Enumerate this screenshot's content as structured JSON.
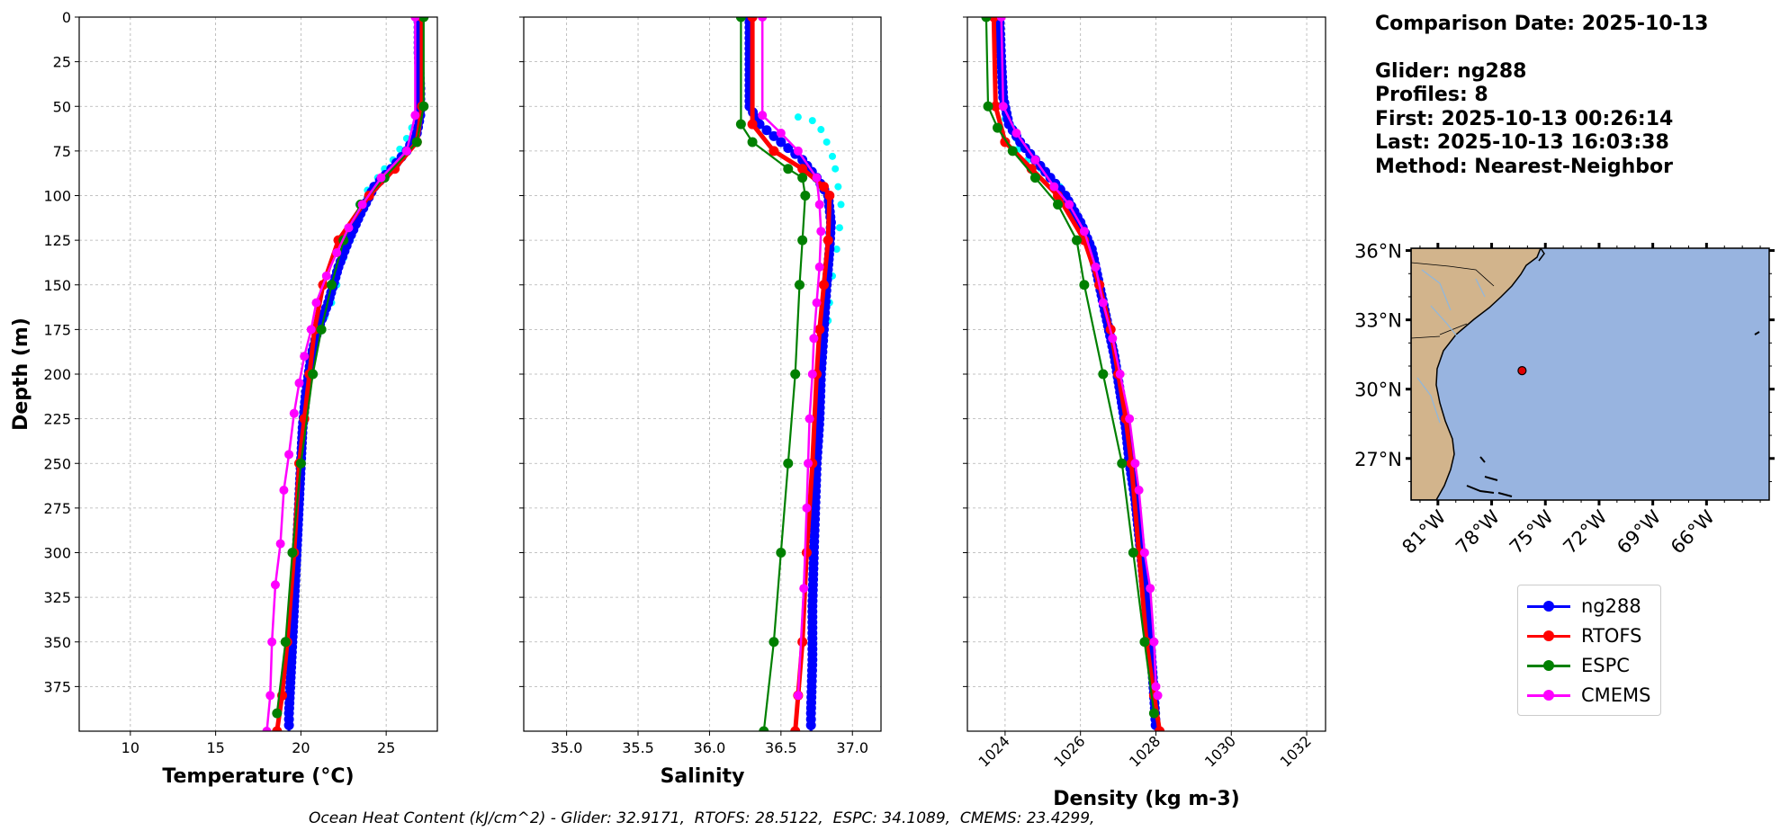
{
  "info": {
    "comparison_date": "Comparison Date: 2025-10-13",
    "glider": "Glider: ng288",
    "profiles": "Profiles: 8",
    "first": "First: 2025-10-13 00:26:14",
    "last": "Last: 2025-10-13 16:03:38",
    "method": "Method: Nearest-Neighbor"
  },
  "footer": "Ocean Heat Content (kJ/cm^2) - Glider: 32.9171,  RTOFS: 28.5122,  ESPC: 34.1089,  CMEMS: 23.4299,",
  "legend": [
    {
      "name": "ng288",
      "color": "#0000ff"
    },
    {
      "name": "RTOFS",
      "color": "#ff0000"
    },
    {
      "name": "ESPC",
      "color": "#008000"
    },
    {
      "name": "CMEMS",
      "color": "#ff00ff"
    }
  ],
  "colors": {
    "glider_scatter": "#00ffff",
    "land": "#d2b48c",
    "ocean": "#98b4e0"
  },
  "map": {
    "lat_ticks": [
      "36°N",
      "33°N",
      "30°N",
      "27°N"
    ],
    "lon_ticks": [
      "81°W",
      "78°W",
      "75°W",
      "72°W",
      "69°W",
      "66°W"
    ],
    "lat_values": [
      36,
      33,
      30,
      27
    ],
    "lon_values": [
      -81,
      -78,
      -75,
      -72,
      -69,
      -66
    ],
    "extent": {
      "lon": [
        -82.5,
        -62.5
      ],
      "lat": [
        25.2,
        36.1
      ]
    },
    "glider_position": {
      "lon": -76.3,
      "lat": 30.8
    }
  },
  "chart_data": [
    {
      "type": "line",
      "xlabel": "Temperature (°C)",
      "ylabel": "Depth (m)",
      "xlim": [
        7,
        28
      ],
      "ylim": [
        400,
        0
      ],
      "xticks": [
        10,
        15,
        20,
        25
      ],
      "yticks": [
        0,
        25,
        50,
        75,
        100,
        125,
        150,
        175,
        200,
        225,
        250,
        275,
        300,
        325,
        350,
        375
      ],
      "grid": true,
      "series": [
        {
          "name": "ng288",
          "points": [
            [
              26.9,
              0
            ],
            [
              26.9,
              20
            ],
            [
              27,
              40
            ],
            [
              27,
              55
            ],
            [
              26.8,
              65
            ],
            [
              26.2,
              75
            ],
            [
              25.3,
              85
            ],
            [
              24.3,
              95
            ],
            [
              23.5,
              110
            ],
            [
              22.8,
              125
            ],
            [
              22.2,
              140
            ],
            [
              21.6,
              160
            ],
            [
              21.0,
              175
            ],
            [
              20.6,
              190
            ],
            [
              20.3,
              210
            ],
            [
              20.1,
              230
            ],
            [
              20.0,
              250
            ],
            [
              19.9,
              270
            ],
            [
              19.8,
              290
            ],
            [
              19.7,
              310
            ],
            [
              19.6,
              330
            ],
            [
              19.5,
              350
            ],
            [
              19.4,
              370
            ],
            [
              19.3,
              390
            ],
            [
              19.3,
              400
            ]
          ]
        },
        {
          "name": "RTOFS",
          "points": [
            [
              27.1,
              0
            ],
            [
              27.1,
              50
            ],
            [
              26.8,
              70
            ],
            [
              25.5,
              85
            ],
            [
              24.0,
              100
            ],
            [
              22.2,
              125
            ],
            [
              21.3,
              150
            ],
            [
              20.8,
              175
            ],
            [
              20.5,
              200
            ],
            [
              20.2,
              225
            ],
            [
              19.9,
              250
            ],
            [
              19.6,
              300
            ],
            [
              19.2,
              350
            ],
            [
              18.9,
              380
            ],
            [
              18.6,
              400
            ]
          ]
        },
        {
          "name": "ESPC",
          "points": [
            [
              27.2,
              0
            ],
            [
              27.2,
              50
            ],
            [
              26.8,
              70
            ],
            [
              24.9,
              90
            ],
            [
              23.5,
              105
            ],
            [
              22.5,
              125
            ],
            [
              21.8,
              150
            ],
            [
              21.2,
              175
            ],
            [
              20.7,
              200
            ],
            [
              20.0,
              250
            ],
            [
              19.5,
              300
            ],
            [
              19.1,
              350
            ],
            [
              18.6,
              390
            ]
          ]
        },
        {
          "name": "CMEMS",
          "points": [
            [
              26.7,
              0
            ],
            [
              26.7,
              55
            ],
            [
              26.2,
              75
            ],
            [
              24.7,
              90
            ],
            [
              23.6,
              105
            ],
            [
              22.8,
              118
            ],
            [
              22.1,
              132
            ],
            [
              21.5,
              145
            ],
            [
              20.9,
              160
            ],
            [
              20.6,
              175
            ],
            [
              20.2,
              190
            ],
            [
              19.9,
              205
            ],
            [
              19.6,
              222
            ],
            [
              19.3,
              245
            ],
            [
              19.0,
              265
            ],
            [
              18.8,
              295
            ],
            [
              18.5,
              318
            ],
            [
              18.3,
              350
            ],
            [
              18.2,
              380
            ],
            [
              18.0,
              400
            ]
          ]
        }
      ],
      "scatter": {
        "name": "glider profiles",
        "points": [
          [
            27.0,
            55
          ],
          [
            26.5,
            62
          ],
          [
            26.2,
            68
          ],
          [
            25.8,
            74
          ],
          [
            25.4,
            80
          ],
          [
            24.9,
            85
          ],
          [
            24.5,
            90
          ],
          [
            23.9,
            97
          ],
          [
            23.4,
            105
          ],
          [
            23.2,
            115
          ],
          [
            22.9,
            125
          ],
          [
            22.5,
            135
          ],
          [
            22.1,
            150
          ],
          [
            21.8,
            160
          ],
          [
            21.4,
            168
          ]
        ]
      }
    },
    {
      "type": "line",
      "xlabel": "Salinity",
      "xlim": [
        34.7,
        37.2
      ],
      "ylim": [
        400,
        0
      ],
      "xticks": [
        35.0,
        35.5,
        36.0,
        36.5,
        37.0
      ],
      "grid": true,
      "series": [
        {
          "name": "ng288",
          "points": [
            [
              36.28,
              0
            ],
            [
              36.28,
              50
            ],
            [
              36.35,
              60
            ],
            [
              36.5,
              70
            ],
            [
              36.65,
              80
            ],
            [
              36.75,
              90
            ],
            [
              36.83,
              100
            ],
            [
              36.85,
              115
            ],
            [
              36.84,
              130
            ],
            [
              36.82,
              150
            ],
            [
              36.8,
              175
            ],
            [
              36.78,
              200
            ],
            [
              36.77,
              225
            ],
            [
              36.75,
              250
            ],
            [
              36.74,
              275
            ],
            [
              36.73,
              300
            ],
            [
              36.72,
              330
            ],
            [
              36.72,
              360
            ],
            [
              36.71,
              390
            ],
            [
              36.71,
              400
            ]
          ]
        },
        {
          "name": "RTOFS",
          "points": [
            [
              36.3,
              0
            ],
            [
              36.3,
              60
            ],
            [
              36.45,
              75
            ],
            [
              36.65,
              85
            ],
            [
              36.8,
              95
            ],
            [
              36.84,
              100
            ],
            [
              36.83,
              125
            ],
            [
              36.8,
              150
            ],
            [
              36.77,
              175
            ],
            [
              36.75,
              200
            ],
            [
              36.72,
              250
            ],
            [
              36.68,
              300
            ],
            [
              36.65,
              350
            ],
            [
              36.62,
              380
            ],
            [
              36.6,
              400
            ]
          ]
        },
        {
          "name": "ESPC",
          "points": [
            [
              36.22,
              0
            ],
            [
              36.22,
              60
            ],
            [
              36.3,
              70
            ],
            [
              36.55,
              85
            ],
            [
              36.65,
              90
            ],
            [
              36.67,
              100
            ],
            [
              36.65,
              125
            ],
            [
              36.63,
              150
            ],
            [
              36.6,
              200
            ],
            [
              36.55,
              250
            ],
            [
              36.5,
              300
            ],
            [
              36.45,
              350
            ],
            [
              36.38,
              400
            ]
          ]
        },
        {
          "name": "CMEMS",
          "points": [
            [
              36.37,
              0
            ],
            [
              36.37,
              55
            ],
            [
              36.5,
              65
            ],
            [
              36.62,
              75
            ],
            [
              36.75,
              90
            ],
            [
              36.77,
              105
            ],
            [
              36.78,
              120
            ],
            [
              36.77,
              140
            ],
            [
              36.75,
              160
            ],
            [
              36.73,
              180
            ],
            [
              36.72,
              200
            ],
            [
              36.7,
              225
            ],
            [
              36.69,
              250
            ],
            [
              36.68,
              275
            ],
            [
              36.66,
              320
            ],
            [
              36.62,
              380
            ]
          ]
        }
      ],
      "scatter": {
        "name": "glider profiles",
        "points": [
          [
            36.62,
            56
          ],
          [
            36.72,
            58
          ],
          [
            36.78,
            63
          ],
          [
            36.82,
            70
          ],
          [
            36.86,
            78
          ],
          [
            36.88,
            85
          ],
          [
            36.9,
            95
          ],
          [
            36.92,
            105
          ],
          [
            36.91,
            118
          ],
          [
            36.89,
            130
          ],
          [
            36.86,
            145
          ],
          [
            36.84,
            160
          ],
          [
            36.83,
            170
          ]
        ]
      }
    },
    {
      "type": "line",
      "xlabel": "Density (kg m-3)",
      "xlim": [
        1023,
        1032.5
      ],
      "ylim": [
        400,
        0
      ],
      "xticks": [
        1024,
        1026,
        1028,
        1030,
        1032
      ],
      "grid": true,
      "series": [
        {
          "name": "ng288",
          "points": [
            [
              1023.85,
              0
            ],
            [
              1023.9,
              25
            ],
            [
              1023.95,
              45
            ],
            [
              1024.1,
              60
            ],
            [
              1024.4,
              70
            ],
            [
              1024.8,
              80
            ],
            [
              1025.2,
              90
            ],
            [
              1025.6,
              100
            ],
            [
              1026.0,
              115
            ],
            [
              1026.3,
              130
            ],
            [
              1026.5,
              150
            ],
            [
              1026.7,
              170
            ],
            [
              1026.9,
              190
            ],
            [
              1027.05,
              210
            ],
            [
              1027.2,
              230
            ],
            [
              1027.3,
              250
            ],
            [
              1027.45,
              270
            ],
            [
              1027.55,
              290
            ],
            [
              1027.65,
              310
            ],
            [
              1027.75,
              330
            ],
            [
              1027.85,
              350
            ],
            [
              1027.92,
              370
            ],
            [
              1027.98,
              390
            ],
            [
              1028.0,
              400
            ]
          ]
        },
        {
          "name": "RTOFS",
          "points": [
            [
              1023.7,
              0
            ],
            [
              1023.75,
              50
            ],
            [
              1024.0,
              70
            ],
            [
              1024.7,
              85
            ],
            [
              1025.4,
              100
            ],
            [
              1026.1,
              125
            ],
            [
              1026.5,
              150
            ],
            [
              1026.8,
              175
            ],
            [
              1027.0,
              200
            ],
            [
              1027.2,
              225
            ],
            [
              1027.35,
              250
            ],
            [
              1027.55,
              300
            ],
            [
              1027.75,
              350
            ],
            [
              1027.95,
              380
            ],
            [
              1028.1,
              400
            ]
          ]
        },
        {
          "name": "ESPC",
          "points": [
            [
              1023.5,
              0
            ],
            [
              1023.55,
              50
            ],
            [
              1023.8,
              62
            ],
            [
              1024.2,
              75
            ],
            [
              1024.8,
              90
            ],
            [
              1025.4,
              105
            ],
            [
              1025.9,
              125
            ],
            [
              1026.1,
              150
            ],
            [
              1026.6,
              200
            ],
            [
              1027.1,
              250
            ],
            [
              1027.4,
              300
            ],
            [
              1027.7,
              350
            ],
            [
              1027.95,
              390
            ]
          ]
        },
        {
          "name": "CMEMS",
          "points": [
            [
              1023.9,
              0
            ],
            [
              1023.95,
              50
            ],
            [
              1024.3,
              65
            ],
            [
              1024.8,
              80
            ],
            [
              1025.3,
              95
            ],
            [
              1025.7,
              105
            ],
            [
              1026.1,
              120
            ],
            [
              1026.4,
              140
            ],
            [
              1026.6,
              160
            ],
            [
              1026.85,
              180
            ],
            [
              1027.05,
              200
            ],
            [
              1027.3,
              225
            ],
            [
              1027.45,
              250
            ],
            [
              1027.55,
              265
            ],
            [
              1027.7,
              300
            ],
            [
              1027.85,
              320
            ],
            [
              1027.95,
              350
            ],
            [
              1028.0,
              375
            ],
            [
              1028.05,
              380
            ]
          ]
        }
      ],
      "scatter": {
        "name": "glider profiles",
        "points": [
          [
            1024.0,
            57
          ],
          [
            1024.2,
            62
          ],
          [
            1024.3,
            68
          ],
          [
            1024.35,
            74
          ],
          [
            1024.6,
            80
          ],
          [
            1024.95,
            85
          ],
          [
            1025.2,
            90
          ],
          [
            1025.45,
            95
          ]
        ]
      }
    }
  ]
}
